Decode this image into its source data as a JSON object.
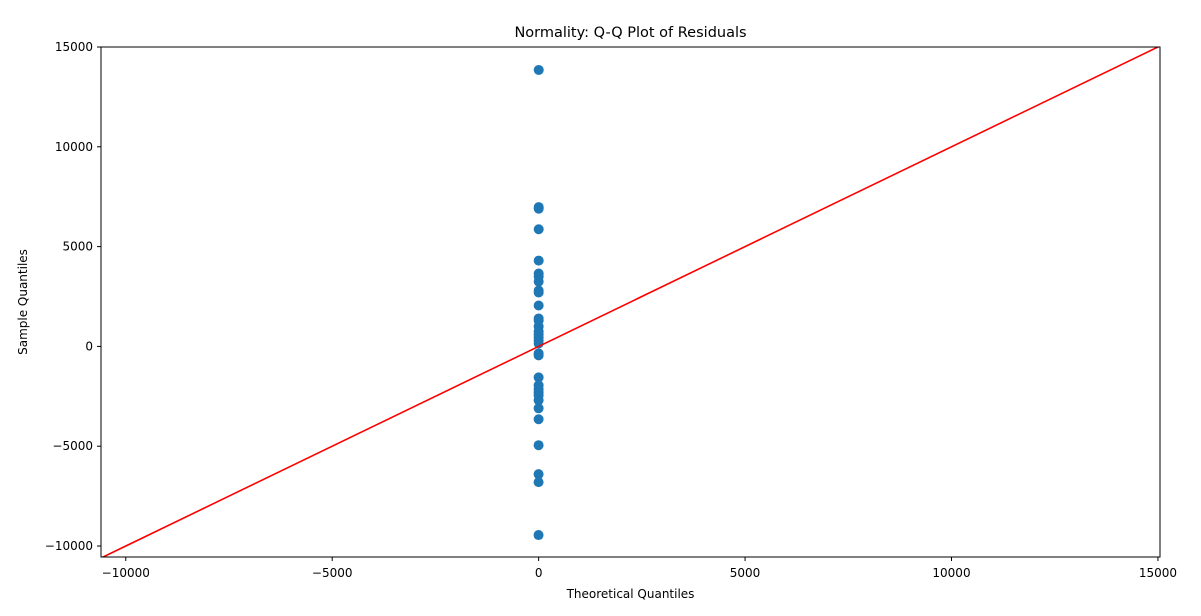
{
  "chart_data": {
    "type": "scatter",
    "title": "Normality: Q-Q Plot of Residuals",
    "xlabel": "Theoretical Quantiles",
    "ylabel": "Sample Quantiles",
    "xlim": [
      -10600,
      15050
    ],
    "ylim": [
      -10550,
      15000
    ],
    "xticks": [
      -10000,
      -5000,
      0,
      5000,
      10000,
      15000
    ],
    "yticks": [
      -10000,
      -5000,
      0,
      5000,
      10000,
      15000
    ],
    "xtick_labels": [
      "−10000",
      "−5000",
      "0",
      "5000",
      "10000",
      "15000"
    ],
    "ytick_labels": [
      "−10000",
      "−5000",
      "0",
      "5000",
      "10000",
      "15000"
    ],
    "grid": false,
    "colors": {
      "points": "#1f77b4",
      "reference_line": "#ff0000"
    },
    "series": [
      {
        "type": "scatter",
        "x": [
          2.2,
          1.8,
          1.6,
          1.5,
          1.3,
          1.2,
          1.0,
          0.9,
          0.8,
          0.7,
          0.6,
          0.5,
          0.4,
          0.3,
          0.2,
          0.1,
          0.05,
          0.0,
          -0.05,
          -0.1,
          -0.2,
          -0.3,
          -0.4,
          -0.5,
          -0.6,
          -0.7,
          -0.8,
          -0.9,
          -1.0,
          -1.2,
          -1.4,
          -1.7,
          -2.2
        ],
        "y": [
          13850,
          6980,
          6900,
          5870,
          4300,
          3650,
          3500,
          3250,
          2800,
          2700,
          2050,
          1400,
          1300,
          1000,
          750,
          600,
          450,
          300,
          150,
          -350,
          -450,
          -1550,
          -1950,
          -2150,
          -2300,
          -2450,
          -2700,
          -3100,
          -3650,
          -4950,
          -6400,
          -6800,
          -9450
        ]
      },
      {
        "type": "line",
        "x": [
          -10600,
          15050
        ],
        "y": [
          -10600,
          15050
        ]
      }
    ]
  }
}
